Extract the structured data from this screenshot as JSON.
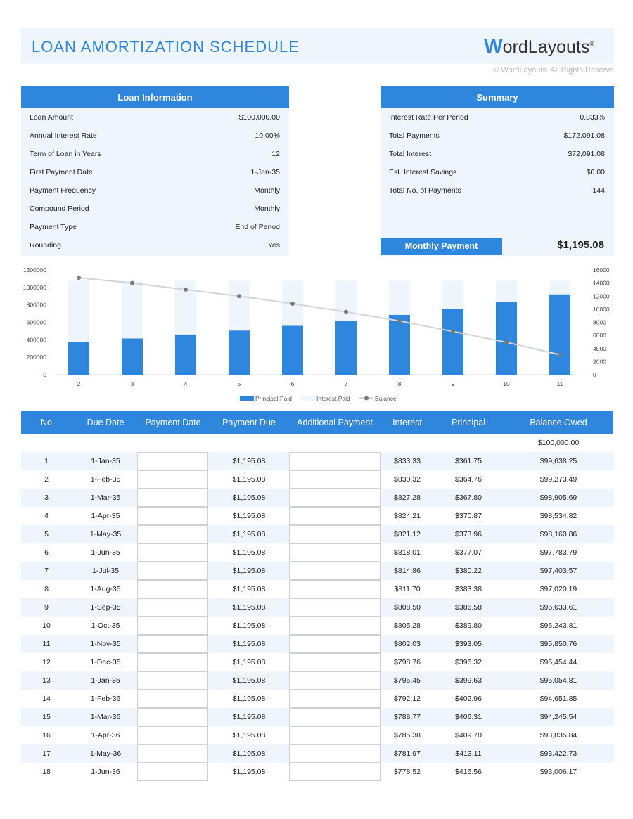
{
  "header": {
    "title": "LOAN AMORTIZATION SCHEDULE",
    "logo": "WordLayouts",
    "copyright": "© WordLayouts. All Rights Reserve"
  },
  "loan_info": {
    "heading": "Loan Information",
    "items": [
      {
        "label": "Loan Amount",
        "value": "$100,000.00"
      },
      {
        "label": "Annual Interest Rate",
        "value": "10.00%"
      },
      {
        "label": "Term  of Loan in Years",
        "value": "12"
      },
      {
        "label": "First Payment Date",
        "value": "1-Jan-35"
      },
      {
        "label": "Payment  Frequency",
        "value": "Monthly"
      },
      {
        "label": "Compound  Period",
        "value": "Monthly"
      },
      {
        "label": "Payment  Type",
        "value": "End of Period"
      },
      {
        "label": "Rounding",
        "value": "Yes"
      }
    ]
  },
  "summary": {
    "heading": "Summary",
    "items": [
      {
        "label": "Interest Rate Per Period",
        "value": "0.833%"
      },
      {
        "label": "Total Payments",
        "value": "$172,091.08"
      },
      {
        "label": "Total Interest",
        "value": "$72,091.08"
      },
      {
        "label": "Est. Interest Savings",
        "value": "$0.00"
      },
      {
        "label": "Total No. of Payments",
        "value": "144"
      }
    ],
    "monthly_payment_label": "Monthly Payment",
    "monthly_payment": "$1,195.08"
  },
  "chart_data": {
    "type": "bar",
    "stacked": true,
    "categories": [
      "2",
      "3",
      "4",
      "5",
      "6",
      "7",
      "8",
      "9",
      "10",
      "11"
    ],
    "series": [
      {
        "name": "Principal Paid",
        "type": "bar",
        "axis": "left",
        "color": "#2f86dd",
        "values": [
          375000,
          415000,
          460000,
          505000,
          560000,
          620000,
          685000,
          755000,
          835000,
          920000
        ]
      },
      {
        "name": "Interest Paid",
        "type": "bar",
        "axis": "left",
        "color": "#eef5fd",
        "values": [
          700000,
          660000,
          615000,
          570000,
          515000,
          455000,
          390000,
          320000,
          240000,
          155000
        ]
      },
      {
        "name": "Balance",
        "type": "line",
        "axis": "right",
        "color": "#7a7a7a",
        "values": [
          14800,
          14000,
          13000,
          12000,
          10850,
          9600,
          8200,
          6600,
          4950,
          3050
        ]
      }
    ],
    "ylim": [
      0,
      1200000
    ],
    "yticks": [
      "0",
      "200000",
      "400000",
      "600000",
      "800000",
      "1000000",
      "1200000"
    ],
    "y2lim": [
      0,
      16000
    ],
    "y2ticks": [
      "0",
      "2000",
      "4000",
      "6000",
      "8000",
      "10000",
      "12000",
      "14000",
      "16000"
    ],
    "legend": "bottom",
    "grid": false
  },
  "table": {
    "columns": [
      "No",
      "Due Date",
      "Payment Date",
      "Payment Due",
      "Additional Payment",
      "Interest",
      "Principal",
      "Balance Owed"
    ],
    "opening_balance": "$100,000.00",
    "rows": [
      [
        "1",
        "1-Jan-35",
        "$1,195.08",
        "$833.33",
        "$361.75",
        "$99,638.25"
      ],
      [
        "2",
        "1-Feb-35",
        "$1,195.08",
        "$830.32",
        "$364.76",
        "$99,273.49"
      ],
      [
        "3",
        "1-Mar-35",
        "$1,195.08",
        "$827.28",
        "$367.80",
        "$98,905.69"
      ],
      [
        "4",
        "1-Apr-35",
        "$1,195.08",
        "$824.21",
        "$370.87",
        "$98,534.82"
      ],
      [
        "5",
        "1-May-35",
        "$1,195.08",
        "$821.12",
        "$373.96",
        "$98,160.86"
      ],
      [
        "6",
        "1-Jun-35",
        "$1,195.08",
        "$818.01",
        "$377.07",
        "$97,783.79"
      ],
      [
        "7",
        "1-Jul-35",
        "$1,195.08",
        "$814.86",
        "$380.22",
        "$97,403.57"
      ],
      [
        "8",
        "1-Aug-35",
        "$1,195.08",
        "$811.70",
        "$383.38",
        "$97,020.19"
      ],
      [
        "9",
        "1-Sep-35",
        "$1,195.08",
        "$808.50",
        "$386.58",
        "$96,633.61"
      ],
      [
        "10",
        "1-Oct-35",
        "$1,195.08",
        "$805.28",
        "$389.80",
        "$96,243.81"
      ],
      [
        "11",
        "1-Nov-35",
        "$1,195.08",
        "$802.03",
        "$393.05",
        "$95,850.76"
      ],
      [
        "12",
        "1-Dec-35",
        "$1,195.08",
        "$798.76",
        "$396.32",
        "$95,454.44"
      ],
      [
        "13",
        "1-Jan-36",
        "$1,195.08",
        "$795.45",
        "$399.63",
        "$95,054.81"
      ],
      [
        "14",
        "1-Feb-36",
        "$1,195.08",
        "$792.12",
        "$402.96",
        "$94,651.85"
      ],
      [
        "15",
        "1-Mar-36",
        "$1,195.08",
        "$788.77",
        "$406.31",
        "$94,245.54"
      ],
      [
        "16",
        "1-Apr-36",
        "$1,195.08",
        "$785.38",
        "$409.70",
        "$93,835.84"
      ],
      [
        "17",
        "1-May-36",
        "$1,195.08",
        "$781.97",
        "$413.11",
        "$93,422.73"
      ],
      [
        "18",
        "1-Jun-36",
        "$1,195.08",
        "$778.52",
        "$416.56",
        "$93,006.17"
      ]
    ]
  }
}
